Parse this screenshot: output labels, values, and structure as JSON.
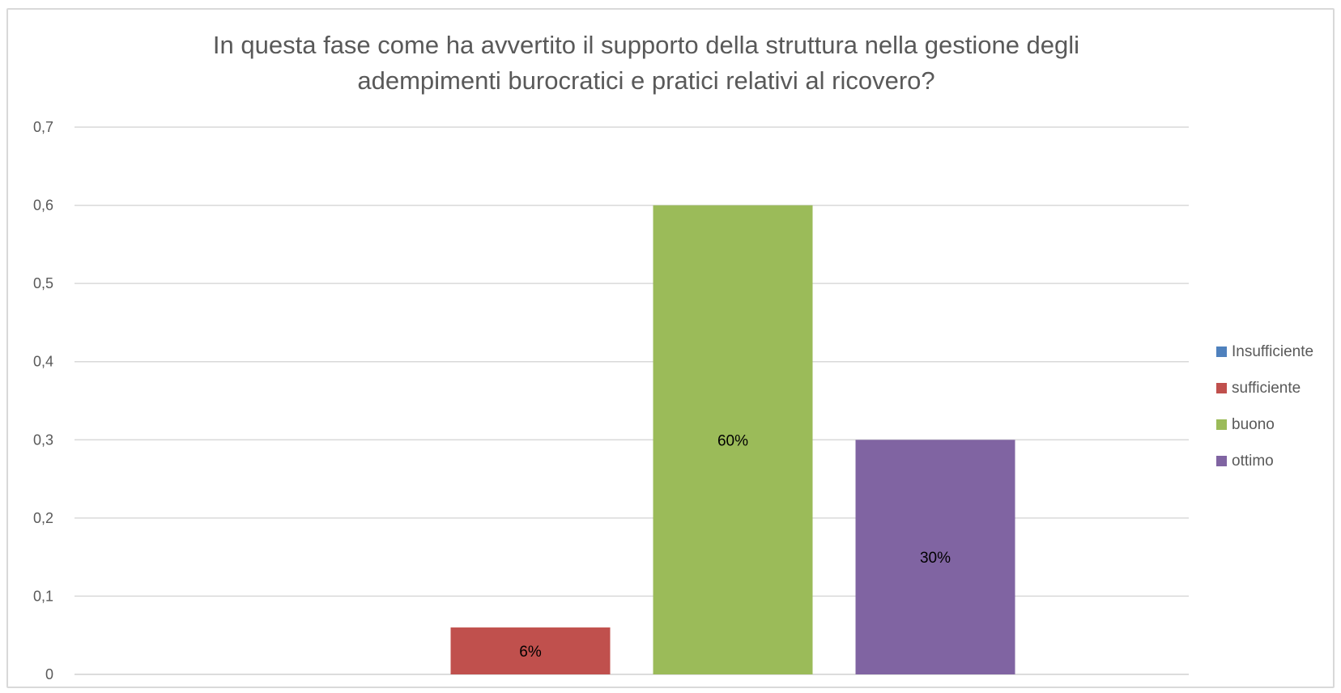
{
  "chart_data": {
    "type": "bar",
    "title": "In questa fase come ha avvertito il supporto della struttura nella gestione degli\nadempimenti burocratici e pratici relativi al ricovero?",
    "xlabel": "",
    "ylabel": "",
    "ylim": [
      0,
      0.7
    ],
    "yticks": [
      "0",
      "0,1",
      "0,2",
      "0,3",
      "0,4",
      "0,5",
      "0,6",
      "0,7"
    ],
    "grid": true,
    "legend_position": "right",
    "series": [
      {
        "name": "Insufficiente",
        "value": 0,
        "label": "",
        "color": "#4F81BD"
      },
      {
        "name": "sufficiente",
        "value": 0.06,
        "label": "6%",
        "color": "#C0504D"
      },
      {
        "name": "buono",
        "value": 0.6,
        "label": "60%",
        "color": "#9BBB59"
      },
      {
        "name": "ottimo",
        "value": 0.3,
        "label": "30%",
        "color": "#8064A2"
      }
    ]
  }
}
